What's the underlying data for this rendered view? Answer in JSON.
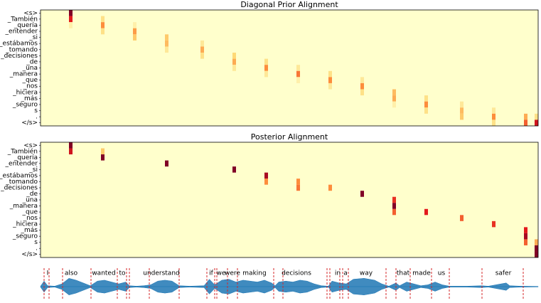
{
  "chart_data": [
    {
      "type": "heatmap",
      "title": "Diagonal Prior Alignment",
      "rows": [
        "<s>",
        "_También",
        "_quería",
        "_entender",
        "_si",
        "_estábamos",
        "_tomando",
        "_decisiones",
        "_de",
        "_una",
        "_manera",
        "_que",
        "_nos",
        "_hiciera",
        "_más",
        "_seguro",
        "s",
        ".",
        "</s>"
      ],
      "xlim": [
        0,
        140
      ],
      "colormap": [
        "#ffffcc",
        "#fed976",
        "#fd8d3c",
        "#e31a1c",
        "#800026"
      ],
      "cells": [
        [
          8,
          0,
          1
        ],
        [
          8,
          1,
          0.75
        ],
        [
          8,
          2,
          0.1
        ],
        [
          17,
          1,
          0.2
        ],
        [
          17,
          2,
          0.5
        ],
        [
          17,
          3,
          0.2
        ],
        [
          26,
          2,
          0.1
        ],
        [
          26,
          3,
          0.45
        ],
        [
          26,
          4,
          0.3
        ],
        [
          35,
          4,
          0.3
        ],
        [
          35,
          5,
          0.35
        ],
        [
          35,
          6,
          0.15
        ],
        [
          45,
          5,
          0.15
        ],
        [
          45,
          6,
          0.4
        ],
        [
          45,
          7,
          0.2
        ],
        [
          54,
          7,
          0.25
        ],
        [
          54,
          8,
          0.4
        ],
        [
          54,
          9,
          0.15
        ],
        [
          63,
          8,
          0.2
        ],
        [
          63,
          9,
          0.5
        ],
        [
          63,
          10,
          0.15
        ],
        [
          72,
          9,
          0.15
        ],
        [
          72,
          10,
          0.55
        ],
        [
          72,
          11,
          0.1
        ],
        [
          81,
          10,
          0.2
        ],
        [
          81,
          11,
          0.5
        ],
        [
          81,
          12,
          0.15
        ],
        [
          90,
          11,
          0.15
        ],
        [
          90,
          12,
          0.5
        ],
        [
          90,
          13,
          0.2
        ],
        [
          99,
          13,
          0.35
        ],
        [
          99,
          14,
          0.4
        ],
        [
          99,
          15,
          0.1
        ],
        [
          108,
          14,
          0.2
        ],
        [
          108,
          15,
          0.5
        ],
        [
          108,
          16,
          0.2
        ],
        [
          118,
          15,
          0.15
        ],
        [
          118,
          16,
          0.35
        ],
        [
          118,
          17,
          0.3
        ],
        [
          127,
          16,
          0.15
        ],
        [
          127,
          17,
          0.5
        ],
        [
          127,
          18,
          0.2
        ],
        [
          136,
          17,
          0.4
        ],
        [
          136,
          18,
          0.6
        ],
        [
          139,
          17,
          0.2
        ],
        [
          139,
          18,
          0.8
        ]
      ]
    },
    {
      "type": "heatmap",
      "title": "Posterior Alignment",
      "rows": [
        "<s>",
        "_También",
        "_quería",
        "_entender",
        "_si",
        "_estábamos",
        "_tomando",
        "_decisiones",
        "_de",
        "_una",
        "_manera",
        "_que",
        "_nos",
        "_hiciera",
        "_más",
        "_seguro",
        "s",
        ".",
        "</s>"
      ],
      "xlim": [
        0,
        140
      ],
      "colormap": [
        "#ffffcc",
        "#fed976",
        "#fd8d3c",
        "#e31a1c",
        "#800026"
      ],
      "cells": [
        [
          8,
          0,
          1
        ],
        [
          8,
          1,
          0.8
        ],
        [
          17,
          1,
          0.3
        ],
        [
          17,
          2,
          1
        ],
        [
          35,
          3,
          1
        ],
        [
          54,
          4,
          1
        ],
        [
          63,
          5,
          0.9
        ],
        [
          63,
          6,
          0.5
        ],
        [
          72,
          6,
          0.5
        ],
        [
          72,
          7,
          0.55
        ],
        [
          81,
          7,
          0.5
        ],
        [
          90,
          8,
          1
        ],
        [
          99,
          9,
          0.7
        ],
        [
          99,
          10,
          1
        ],
        [
          99,
          11,
          0.6
        ],
        [
          108,
          11,
          0.75
        ],
        [
          118,
          12,
          0.6
        ],
        [
          127,
          13,
          0.7
        ],
        [
          136,
          14,
          0.75
        ],
        [
          136,
          15,
          0.9
        ],
        [
          136,
          16,
          0.6
        ],
        [
          139,
          16,
          0.4
        ],
        [
          139,
          17,
          1
        ],
        [
          139,
          18,
          1
        ]
      ]
    },
    {
      "type": "waveform",
      "xlim": [
        0,
        140
      ],
      "color": "#1f77b4",
      "boundary_color": "#d62728",
      "words": [
        "I",
        "also",
        "wanted",
        "to",
        "understand",
        "if",
        "we",
        "were",
        "making",
        "decisions",
        "in",
        "a",
        "way",
        "that",
        "made",
        "us",
        "safer"
      ],
      "word_x": [
        2,
        8.6,
        17.8,
        23,
        34,
        48,
        50.8,
        54,
        60.2,
        72,
        83.6,
        85.8,
        91.6,
        102,
        107.2,
        112.8,
        130.2
      ],
      "boundaries": [
        1,
        2.4,
        6.2,
        14.2,
        21.6,
        24.2,
        25,
        30.6,
        39,
        46.8,
        49,
        49.6,
        52.6,
        55.4,
        65.6,
        68.2,
        80.6,
        81.4,
        84.2,
        85,
        86.6,
        97.2,
        100,
        104,
        110,
        115,
        124.2,
        135.8
      ],
      "envelope": [
        [
          0,
          0.05
        ],
        [
          1,
          0.6
        ],
        [
          2,
          0.1
        ],
        [
          4,
          0.05
        ],
        [
          6,
          0.3
        ],
        [
          8,
          0.9
        ],
        [
          10,
          0.7
        ],
        [
          12,
          0.4
        ],
        [
          14,
          0.1
        ],
        [
          16,
          0.6
        ],
        [
          18,
          0.7
        ],
        [
          20,
          0.5
        ],
        [
          22,
          0.3
        ],
        [
          24,
          0.5
        ],
        [
          25,
          0.1
        ],
        [
          27,
          0.05
        ],
        [
          29,
          0.1
        ],
        [
          31,
          0.2
        ],
        [
          33,
          0.6
        ],
        [
          35,
          0.7
        ],
        [
          37,
          0.6
        ],
        [
          39,
          0.1
        ],
        [
          42,
          0.05
        ],
        [
          46,
          0.1
        ],
        [
          47.5,
          0.8
        ],
        [
          49,
          0.2
        ],
        [
          51,
          0.7
        ],
        [
          53,
          0.8
        ],
        [
          55,
          0.5
        ],
        [
          57,
          0.7
        ],
        [
          59,
          0.6
        ],
        [
          61,
          0.5
        ],
        [
          63,
          0.7
        ],
        [
          65,
          0.4
        ],
        [
          66,
          0.1
        ],
        [
          67,
          0.5
        ],
        [
          69,
          0.6
        ],
        [
          71,
          0.5
        ],
        [
          73,
          0.7
        ],
        [
          75,
          0.6
        ],
        [
          77,
          0.3
        ],
        [
          79,
          0.1
        ],
        [
          81,
          0.05
        ],
        [
          82,
          0.6
        ],
        [
          84,
          0.4
        ],
        [
          86,
          0.3
        ],
        [
          88,
          0.8
        ],
        [
          91,
          0.9
        ],
        [
          94,
          0.7
        ],
        [
          96,
          0.3
        ],
        [
          98,
          0.05
        ],
        [
          100,
          0.4
        ],
        [
          101,
          0.1
        ],
        [
          103,
          0.5
        ],
        [
          105,
          0.3
        ],
        [
          107,
          0.1
        ],
        [
          109,
          0.2
        ],
        [
          111,
          0.5
        ],
        [
          113,
          0.2
        ],
        [
          115,
          0.05
        ],
        [
          120,
          0.05
        ],
        [
          124,
          0.1
        ],
        [
          126,
          0.05
        ],
        [
          131,
          0.4
        ],
        [
          132,
          0.1
        ],
        [
          135,
          0.05
        ],
        [
          140,
          0.03
        ]
      ]
    }
  ]
}
